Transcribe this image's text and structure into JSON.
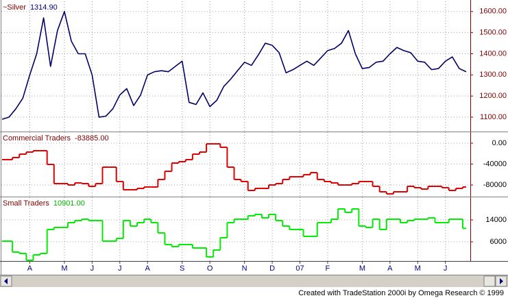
{
  "chart_data": {
    "type": "line",
    "footer": "Created with TradeStation 2000i by Omega Research © 1999",
    "grid": true,
    "categories": [
      null,
      null,
      null,
      null,
      "A",
      null,
      null,
      null,
      null,
      "M",
      null,
      null,
      null,
      "J",
      null,
      null,
      null,
      "J",
      null,
      null,
      null,
      "A",
      null,
      null,
      null,
      null,
      "S",
      null,
      null,
      null,
      "O",
      null,
      null,
      null,
      null,
      "N",
      null,
      null,
      null,
      "D",
      null,
      null,
      null,
      "07",
      null,
      null,
      null,
      "F",
      null,
      null,
      null,
      null,
      "M",
      null,
      null,
      null,
      "A",
      null,
      null,
      null,
      "M",
      null,
      null,
      null,
      "J",
      null,
      null,
      null
    ],
    "panels": [
      {
        "name": "~Silver",
        "value_label": "1314.90",
        "color": "#000066",
        "step": false,
        "ylim": [
          1032,
          1648
        ],
        "yticks": [
          {
            "value": 1600,
            "label": "1600.00"
          },
          {
            "value": 1500,
            "label": "1500.00"
          },
          {
            "value": 1400,
            "label": "1400.00"
          },
          {
            "value": 1300,
            "label": "1300.00"
          },
          {
            "value": 1200,
            "label": "1200.00"
          },
          {
            "value": 1100,
            "label": "1100.00"
          }
        ],
        "values": [
          1090,
          1100,
          1140,
          1190,
          1300,
          1400,
          1570,
          1340,
          1510,
          1600,
          1460,
          1400,
          1400,
          1300,
          1100,
          1105,
          1140,
          1205,
          1235,
          1155,
          1205,
          1300,
          1315,
          1320,
          1315,
          1340,
          1365,
          1170,
          1160,
          1215,
          1150,
          1180,
          1245,
          1280,
          1320,
          1360,
          1345,
          1395,
          1450,
          1440,
          1405,
          1310,
          1325,
          1345,
          1365,
          1345,
          1380,
          1415,
          1425,
          1450,
          1510,
          1400,
          1330,
          1335,
          1360,
          1365,
          1400,
          1430,
          1415,
          1405,
          1365,
          1360,
          1325,
          1330,
          1365,
          1385,
          1330,
          1314.9
        ]
      },
      {
        "name": "Commercial Traders",
        "value_label": "-83885.00",
        "color": "#e00000",
        "step": true,
        "ylim": [
          -102300,
          21000
        ],
        "yticks": [
          {
            "value": 0,
            "label": "0.00"
          },
          -40000,
          -80000
        ],
        "values": [
          -31500,
          -31500,
          -27500,
          -21000,
          -17000,
          -14400,
          -14400,
          -40700,
          -77400,
          -77400,
          -80000,
          -76100,
          -77400,
          -82600,
          -77400,
          -45900,
          -45900,
          -73400,
          -89200,
          -89200,
          -86600,
          -83900,
          -83900,
          -69500,
          -53800,
          -38000,
          -35400,
          -31500,
          -21000,
          -17000,
          -1300,
          -1300,
          -7900,
          -45900,
          -69500,
          -73400,
          -90500,
          -86600,
          -86600,
          -80000,
          -77400,
          -69500,
          -64300,
          -64300,
          -60300,
          -56400,
          -69500,
          -73400,
          -76100,
          -80000,
          -80000,
          -77400,
          -73400,
          -73400,
          -82600,
          -93100,
          -97100,
          -93100,
          -93100,
          -82600,
          -85200,
          -87900,
          -82600,
          -82600,
          -85200,
          -90500,
          -86600,
          -83885
        ]
      },
      {
        "name": "Small Traders",
        "value_label": "10901.00",
        "color": "#00ee00",
        "step": true,
        "ylim": [
          -1000,
          22250
        ],
        "yticks": [
          14000,
          6000
        ],
        "values": [
          6250,
          6250,
          2250,
          1750,
          -750,
          1250,
          1750,
          10500,
          11250,
          11250,
          13000,
          13750,
          14250,
          13750,
          13750,
          6250,
          6250,
          7250,
          13750,
          11750,
          13000,
          14250,
          13000,
          9250,
          5000,
          4250,
          5000,
          5000,
          3750,
          3750,
          500,
          3000,
          7500,
          13000,
          14250,
          14250,
          15500,
          16000,
          14750,
          16000,
          13750,
          11750,
          10500,
          10500,
          8000,
          8000,
          13000,
          13000,
          14250,
          18000,
          16750,
          18000,
          11750,
          11250,
          14250,
          10500,
          14250,
          14250,
          13000,
          13750,
          14250,
          14250,
          14750,
          13000,
          13000,
          14250,
          14250,
          10901
        ]
      }
    ]
  }
}
